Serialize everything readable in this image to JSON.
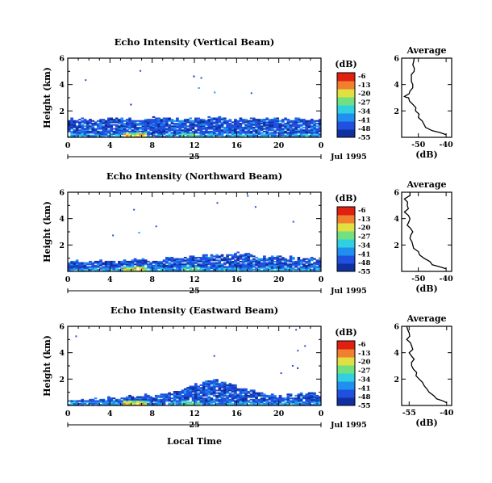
{
  "chart_data": [
    {
      "type": "heatmap",
      "title": "Echo Intensity (Vertical Beam)",
      "ylabel": "Height (km)",
      "xlabel": "",
      "x_ticks": [
        "0",
        "4",
        "8",
        "12",
        "16",
        "20",
        "0"
      ],
      "y_ticks": [
        "2",
        "4",
        "6"
      ],
      "xlim": [
        0,
        24
      ],
      "ylim": [
        0,
        6
      ],
      "date_label": "Jul 1995",
      "day_label": "25",
      "colorbar": {
        "title": "(dB)",
        "labels": [
          "-6",
          "-13",
          "-20",
          "-27",
          "-34",
          "-41",
          "-48",
          "-55"
        ]
      },
      "colormap": [
        "#1030a0",
        "#2050e0",
        "#2090f0",
        "#30d0e0",
        "#70e080",
        "#e0e040",
        "#f08030",
        "#e02010"
      ],
      "echo_top_km": [
        1.4,
        1.4,
        1.4,
        1.4,
        1.4,
        1.4,
        1.4,
        1.4,
        1.5,
        1.4,
        1.4,
        1.4,
        1.4,
        1.5,
        1.5,
        1.4,
        1.4,
        1.4,
        1.5,
        1.4,
        1.4,
        1.4,
        1.4,
        1.4,
        1.4
      ],
      "average_profile": {
        "title": "Average",
        "xlabel": "(dB)",
        "x_ticks": [
          "-50",
          "-40"
        ],
        "y_ticks": [
          "2",
          "4",
          "6"
        ],
        "xlim": [
          -56,
          -38
        ],
        "ylim": [
          0,
          6
        ],
        "height_km": [
          0.2,
          0.5,
          1.0,
          1.5,
          2.0,
          2.5,
          3.0,
          3.1,
          3.5,
          4.0,
          4.5,
          5.0,
          5.5,
          6.0
        ],
        "db": [
          -40,
          -45,
          -48,
          -50,
          -51,
          -52,
          -53.5,
          -55,
          -53,
          -52,
          -52.5,
          -51.5,
          -52,
          -51.5
        ]
      }
    },
    {
      "type": "heatmap",
      "title": "Echo Intensity (Northward Beam)",
      "ylabel": "Height (km)",
      "xlabel": "",
      "x_ticks": [
        "0",
        "4",
        "8",
        "12",
        "16",
        "20",
        "0"
      ],
      "y_ticks": [
        "2",
        "4",
        "6"
      ],
      "xlim": [
        0,
        24
      ],
      "ylim": [
        0,
        6
      ],
      "date_label": "Jul 1995",
      "day_label": "25",
      "colorbar": {
        "title": "(dB)",
        "labels": [
          "-6",
          "-13",
          "-20",
          "-27",
          "-34",
          "-41",
          "-48",
          "-55"
        ]
      },
      "colormap": [
        "#1030a0",
        "#2050e0",
        "#2090f0",
        "#30d0e0",
        "#70e080",
        "#e0e040",
        "#f08030",
        "#e02010"
      ],
      "echo_top_km": [
        0.9,
        0.8,
        0.7,
        0.8,
        0.7,
        0.8,
        0.9,
        0.9,
        0.8,
        1.0,
        1.1,
        1.0,
        1.1,
        1.2,
        1.3,
        1.2,
        1.4,
        1.3,
        1.2,
        1.1,
        1.2,
        1.1,
        1.0,
        1.0,
        0.9
      ],
      "average_profile": {
        "title": "Average",
        "xlabel": "(dB)",
        "x_ticks": [
          "-50",
          "-40"
        ],
        "y_ticks": [
          "2",
          "4",
          "6"
        ],
        "xlim": [
          -56,
          -38
        ],
        "ylim": [
          0,
          6
        ],
        "height_km": [
          0.2,
          0.5,
          1.0,
          1.5,
          2.0,
          2.5,
          3.0,
          3.5,
          4.0,
          4.5,
          5.0,
          5.5,
          6.0
        ],
        "db": [
          -40,
          -45,
          -48,
          -50,
          -52,
          -53,
          -52,
          -54,
          -53,
          -55,
          -54,
          -55,
          -53
        ]
      }
    },
    {
      "type": "heatmap",
      "title": "Echo Intensity (Eastward Beam)",
      "ylabel": "Height (km)",
      "xlabel": "Local Time",
      "x_ticks": [
        "0",
        "4",
        "8",
        "12",
        "16",
        "20",
        "0"
      ],
      "y_ticks": [
        "2",
        "4",
        "6"
      ],
      "xlim": [
        0,
        24
      ],
      "ylim": [
        0,
        6
      ],
      "date_label": "Jul 1995",
      "day_label": "25",
      "colorbar": {
        "title": "(dB)",
        "labels": [
          "-6",
          "-13",
          "-20",
          "-27",
          "-34",
          "-41",
          "-48",
          "-55"
        ]
      },
      "colormap": [
        "#1030a0",
        "#2050e0",
        "#2090f0",
        "#30d0e0",
        "#70e080",
        "#e0e040",
        "#f08030",
        "#e02010"
      ],
      "echo_top_km": [
        0.4,
        0.4,
        0.5,
        0.5,
        0.6,
        0.6,
        0.7,
        0.8,
        0.7,
        0.9,
        1.0,
        1.3,
        1.6,
        1.8,
        2.0,
        1.7,
        1.4,
        1.2,
        1.0,
        0.8,
        0.7,
        0.8,
        0.9,
        1.0,
        0.8
      ],
      "average_profile": {
        "title": "Average",
        "xlabel": "(dB)",
        "x_ticks": [
          "-55",
          "-40"
        ],
        "y_ticks": [
          "2",
          "4",
          "6"
        ],
        "xlim": [
          -58,
          -38
        ],
        "ylim": [
          0,
          6
        ],
        "height_km": [
          0.2,
          0.5,
          1.0,
          1.5,
          2.0,
          2.5,
          3.0,
          3.5,
          4.0,
          4.5,
          5.0,
          5.5,
          6.0
        ],
        "db": [
          -40,
          -44,
          -47,
          -49,
          -51,
          -52,
          -54,
          -53,
          -55,
          -54,
          -56,
          -55,
          -56
        ]
      }
    }
  ]
}
